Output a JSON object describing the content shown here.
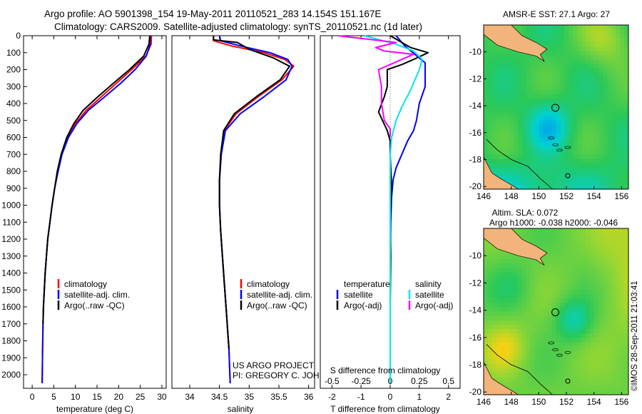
{
  "header": {
    "line1": "Argo profile: AO 5901398_154 19-May-2011 20110521_283 14.154S 151.167E",
    "line2": "Climatology: CARS2009. Satellite-adjusted climatology: synTS_20110521.nc (1d later)"
  },
  "side_label": "©IMOS 28-Sep-2011 21:03:41",
  "project_label": {
    "line1": "US ARGO PROJECT",
    "line2": "PI: GREGORY C. JOHNSON"
  },
  "colors": {
    "climatology": "#ff0000",
    "satellite": "#0000ff",
    "argo": "#000000",
    "sal_satellite": "#00e5ee",
    "sal_argo": "#ff00ff",
    "land": "#f2b47a"
  },
  "chart_data": [
    {
      "type": "line",
      "title": "",
      "xlabel": "temperature (deg C)",
      "ylabel": "",
      "xlim": [
        -2,
        31
      ],
      "ylim": [
        2080,
        0
      ],
      "xticks": [
        0,
        5,
        10,
        15,
        20,
        25,
        30
      ],
      "yticks": [
        0,
        100,
        200,
        300,
        400,
        500,
        600,
        700,
        800,
        900,
        1000,
        1100,
        1200,
        1300,
        1400,
        1500,
        1600,
        1700,
        1800,
        1900,
        2000
      ],
      "legend": [
        "climatology",
        "satellite-adj. clim.",
        "Argo(..raw -QC)"
      ],
      "series": [
        {
          "name": "climatology",
          "color": "#ff0000",
          "x": [
            27.6,
            27.5,
            26.3,
            23.0,
            19.5,
            16.0,
            12.5,
            10.0,
            8.2,
            6.8,
            5.9,
            5.2,
            4.6,
            4.1,
            3.6,
            3.3,
            3.0,
            2.8,
            2.6,
            2.5,
            2.4,
            2.3
          ],
          "y": [
            0,
            50,
            120,
            200,
            280,
            360,
            440,
            520,
            600,
            700,
            800,
            900,
            1000,
            1100,
            1200,
            1300,
            1400,
            1500,
            1600,
            1700,
            1850,
            2050
          ]
        },
        {
          "name": "satellite-adj. clim.",
          "color": "#0000ff",
          "x": [
            27.3,
            27.3,
            26.4,
            23.8,
            20.5,
            16.8,
            13.0,
            10.3,
            8.4,
            6.9,
            6.0,
            5.2,
            4.6,
            4.1,
            3.6,
            3.3,
            3.0,
            2.8,
            2.6,
            2.5,
            2.4,
            2.3
          ],
          "y": [
            0,
            50,
            120,
            200,
            280,
            360,
            440,
            520,
            600,
            700,
            800,
            900,
            1000,
            1100,
            1200,
            1300,
            1400,
            1500,
            1600,
            1700,
            1850,
            2050
          ]
        },
        {
          "name": "Argo(..raw -QC)",
          "color": "#000000",
          "x": [
            27.2,
            27.0,
            25.8,
            22.5,
            18.8,
            15.2,
            11.8,
            9.6,
            8.0,
            6.7,
            5.8,
            5.2,
            4.6,
            4.1,
            3.6,
            3.3,
            3.0,
            2.8,
            2.6,
            2.5
          ],
          "y": [
            0,
            50,
            120,
            200,
            280,
            360,
            440,
            520,
            600,
            700,
            800,
            900,
            1000,
            1100,
            1200,
            1300,
            1400,
            1500,
            1600,
            1700
          ]
        }
      ]
    },
    {
      "type": "line",
      "title": "",
      "xlabel": "salinity",
      "ylabel": "",
      "xlim": [
        33.7,
        36.1
      ],
      "ylim": [
        2080,
        0
      ],
      "xticks": [
        34,
        34.5,
        35,
        35.5,
        36
      ],
      "legend": [
        "climatology",
        "satellite-adj. clim.",
        "Argo(..raw -QC)"
      ],
      "series": [
        {
          "name": "climatology",
          "color": "#ff0000",
          "x": [
            34.4,
            34.4,
            34.7,
            35.25,
            35.6,
            35.75,
            35.55,
            35.15,
            34.78,
            34.58,
            34.53,
            34.5,
            34.5,
            34.52,
            34.55,
            34.58,
            34.6,
            34.62,
            34.64,
            34.66,
            34.67,
            34.68
          ],
          "y": [
            0,
            30,
            60,
            100,
            140,
            180,
            260,
            360,
            460,
            560,
            700,
            850,
            1000,
            1150,
            1300,
            1450,
            1550,
            1650,
            1750,
            1850,
            1950,
            2050
          ]
        },
        {
          "name": "satellite-adj. clim.",
          "color": "#0000ff",
          "x": [
            34.5,
            34.52,
            34.85,
            35.35,
            35.65,
            35.72,
            35.62,
            35.25,
            34.85,
            34.6,
            34.53,
            34.5,
            34.5,
            34.52,
            34.55,
            34.58,
            34.6,
            34.62,
            34.64,
            34.66,
            34.67,
            34.68
          ],
          "y": [
            0,
            30,
            60,
            100,
            140,
            180,
            260,
            360,
            460,
            560,
            700,
            850,
            1000,
            1150,
            1300,
            1450,
            1550,
            1650,
            1750,
            1850,
            1950,
            2050
          ]
        },
        {
          "name": "Argo(..raw -QC)",
          "color": "#000000",
          "x": [
            34.4,
            34.4,
            34.8,
            35.0,
            35.4,
            35.68,
            35.52,
            35.12,
            34.75,
            34.57,
            34.52,
            34.5,
            34.5,
            34.52,
            34.55,
            34.58,
            34.6,
            34.62,
            34.64,
            34.66
          ],
          "y": [
            0,
            25,
            40,
            80,
            130,
            180,
            260,
            360,
            460,
            560,
            700,
            850,
            1000,
            1150,
            1300,
            1450,
            1550,
            1650,
            1750,
            1850
          ]
        }
      ]
    },
    {
      "type": "line",
      "title": "",
      "xlabel": "T difference from climatology",
      "xlabel_top": "S difference from climatology",
      "ylabel": "",
      "xlim": [
        -2.4,
        2.4
      ],
      "ylim": [
        2080,
        0
      ],
      "xticks": [
        -2,
        -1,
        0,
        1,
        2
      ],
      "xticks_top": [
        -0.5,
        -0.25,
        0,
        0.25,
        0.5
      ],
      "legend": [
        "temperature",
        "satellite",
        "Argo(-adj)",
        "salinity",
        "satellite",
        "Argo(-adj)"
      ],
      "series": [
        {
          "name": "temperature satellite",
          "color": "#0000ff",
          "x": [
            0.2,
            0.5,
            1.2,
            1.2,
            1.0,
            0.9,
            0.8,
            0.6,
            0.4,
            0.2,
            0.1,
            0.05,
            0.02,
            0.0,
            0.0,
            0.0,
            0.0
          ],
          "y": [
            0,
            60,
            160,
            300,
            400,
            500,
            560,
            620,
            700,
            780,
            850,
            950,
            1100,
            1300,
            1500,
            1800,
            2050
          ]
        },
        {
          "name": "temperature Argo(-adj)",
          "color": "#000000",
          "x": [
            0.0,
            0.7,
            1.3,
            0.8,
            0.4,
            -0.1,
            -0.1,
            -0.2,
            -0.4,
            -0.1,
            0.0,
            0.0,
            0.05,
            0.0,
            0.02,
            0.0,
            0.0
          ],
          "y": [
            0,
            70,
            100,
            140,
            170,
            200,
            300,
            360,
            450,
            560,
            620,
            700,
            900,
            1100,
            1300,
            1600,
            1700
          ]
        },
        {
          "name": "salinity satellite",
          "color": "#00e5ee",
          "x": [
            -0.9,
            0.2,
            0.8,
            1.1,
            1.0,
            0.7,
            0.4,
            0.2,
            0.05,
            0.0,
            0.0,
            0.0,
            0.0
          ],
          "y": [
            0,
            50,
            90,
            140,
            200,
            320,
            420,
            500,
            600,
            700,
            900,
            1200,
            2050
          ]
        },
        {
          "name": "salinity Argo(-adj)",
          "color": "#ff00ff",
          "x": [
            -1.8,
            0.2,
            -0.5,
            -0.2,
            0.8,
            -0.4,
            -0.3,
            -0.3,
            -0.2,
            0.0,
            0.0
          ],
          "y": [
            0,
            40,
            70,
            90,
            110,
            200,
            300,
            400,
            500,
            550,
            600
          ]
        }
      ]
    },
    {
      "type": "heatmap",
      "title": "AMSR-E SST: 27.1 Argo: 27",
      "xlim": [
        146,
        156.5
      ],
      "ylim": [
        -20.2,
        -8
      ],
      "xticks": [
        146,
        148,
        150,
        152,
        154,
        156
      ],
      "yticks": [
        -10,
        -12,
        -14,
        -16,
        -18,
        -20
      ],
      "markers": [
        {
          "lon": 151.2,
          "lat": -14.15
        },
        {
          "lon": 152.1,
          "lat": -19.2
        }
      ]
    },
    {
      "type": "heatmap",
      "title": "Altim. SLA: 0.072",
      "subtitle": "Argo h1000: -0.038 h2000: -0.046",
      "xlim": [
        146,
        156.5
      ],
      "ylim": [
        -20.2,
        -8
      ],
      "xticks": [
        146,
        148,
        150,
        152,
        154,
        156
      ],
      "yticks": [
        -10,
        -12,
        -14,
        -16,
        -18,
        -20
      ],
      "markers": [
        {
          "lon": 151.2,
          "lat": -14.15
        },
        {
          "lon": 152.1,
          "lat": -19.2
        }
      ]
    }
  ]
}
